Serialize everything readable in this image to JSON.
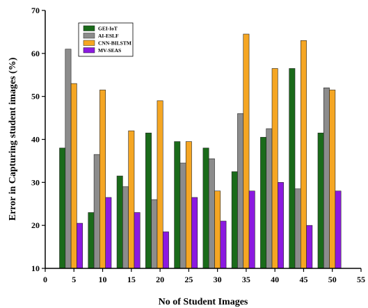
{
  "chart_data": {
    "type": "bar",
    "x_categories": [
      5,
      10,
      15,
      20,
      25,
      30,
      35,
      40,
      45,
      50
    ],
    "series": [
      {
        "name": "GEI-IoT",
        "color": "#1a6b1a",
        "values": [
          38,
          23,
          31.5,
          41.5,
          39.5,
          38,
          32.5,
          40.5,
          56.5,
          41.5
        ]
      },
      {
        "name": "AI-ESLF",
        "color": "#8c8c8c",
        "values": [
          61,
          36.5,
          29,
          26,
          34.5,
          35.5,
          46,
          42.5,
          28.5,
          52
        ]
      },
      {
        "name": "CNN-BILSTM",
        "color": "#f5a623",
        "values": [
          53,
          51.5,
          42,
          49,
          39.5,
          28,
          64.5,
          56.5,
          63,
          51.5
        ]
      },
      {
        "name": "MV-SEAS",
        "color": "#8b1ae0",
        "values": [
          20.5,
          26.5,
          23,
          18.5,
          26.5,
          21,
          28,
          30,
          20,
          28
        ]
      }
    ],
    "x_ticks": [
      "0",
      "5",
      "10",
      "15",
      "20",
      "25",
      "30",
      "35",
      "40",
      "45",
      "50",
      "55"
    ],
    "y_ticks": [
      "10",
      "20",
      "30",
      "40",
      "50",
      "60",
      "70"
    ],
    "xlabel": "No of Student Images",
    "ylabel": "Error in Capturing student images (%)",
    "xlim": [
      0,
      55
    ],
    "ylim": [
      10,
      70
    ],
    "grid": false,
    "legend_position": "top-left"
  }
}
